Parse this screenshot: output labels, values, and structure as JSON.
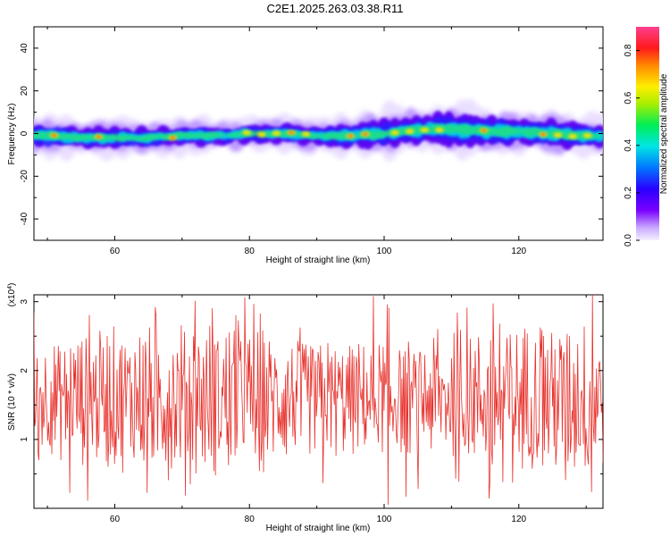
{
  "figure": {
    "title": "C2E1.2025.263.03.38.R11"
  },
  "chart_data": [
    {
      "type": "heatmap",
      "xlabel": "Height of straight line (km)",
      "ylabel": "Frequency (Hz)",
      "xlim": [
        48,
        132.5
      ],
      "ylim": [
        -50,
        50
      ],
      "x_ticks": [
        60,
        80,
        100,
        120
      ],
      "y_ticks": [
        -40,
        -20,
        0,
        20,
        40
      ],
      "grid": false,
      "description_of_ridge": "Spectral energy concentrated near 0 Hz across all heights, spreading to about +/-8 Hz; slight positive offset (~2-4 Hz) near 104-110 km.",
      "ridge": {
        "x": [
          50,
          55,
          60,
          65,
          70,
          75,
          80,
          85,
          90,
          95,
          100,
          105,
          110,
          115,
          120,
          125,
          130
        ],
        "center_hz": [
          -1,
          -2,
          -2,
          -2,
          -1,
          -1,
          0,
          0,
          -1,
          -1,
          0,
          2,
          2,
          1,
          1,
          0,
          -1
        ],
        "halfwidth_hz": [
          5,
          4,
          5,
          4,
          4,
          4,
          4,
          4,
          4,
          5,
          6,
          6,
          7,
          6,
          6,
          6,
          5
        ]
      },
      "colorbar": {
        "label": "Normalized spectral amplitude",
        "range": [
          0.0,
          0.9
        ],
        "ticks": [
          "0.0",
          "0.2",
          "0.4",
          "0.6",
          "0.8"
        ]
      }
    },
    {
      "type": "line",
      "xlabel": "Height of straight line (km)",
      "ylabel": "SNR (10 * v/v)",
      "y_multiplier": "(x10^4)",
      "xlim": [
        48,
        132.5
      ],
      "ylim": [
        0,
        3.1
      ],
      "x_ticks": [
        60,
        80,
        100,
        120
      ],
      "y_ticks": [
        1,
        2,
        3
      ],
      "grid": false,
      "series": [
        {
          "name": "SNR",
          "color": "#e8332e",
          "x_start": 48,
          "x_end": 132.5,
          "n_points": 700,
          "mean": 1.6,
          "range": [
            0.05,
            3.1
          ]
        }
      ]
    }
  ]
}
